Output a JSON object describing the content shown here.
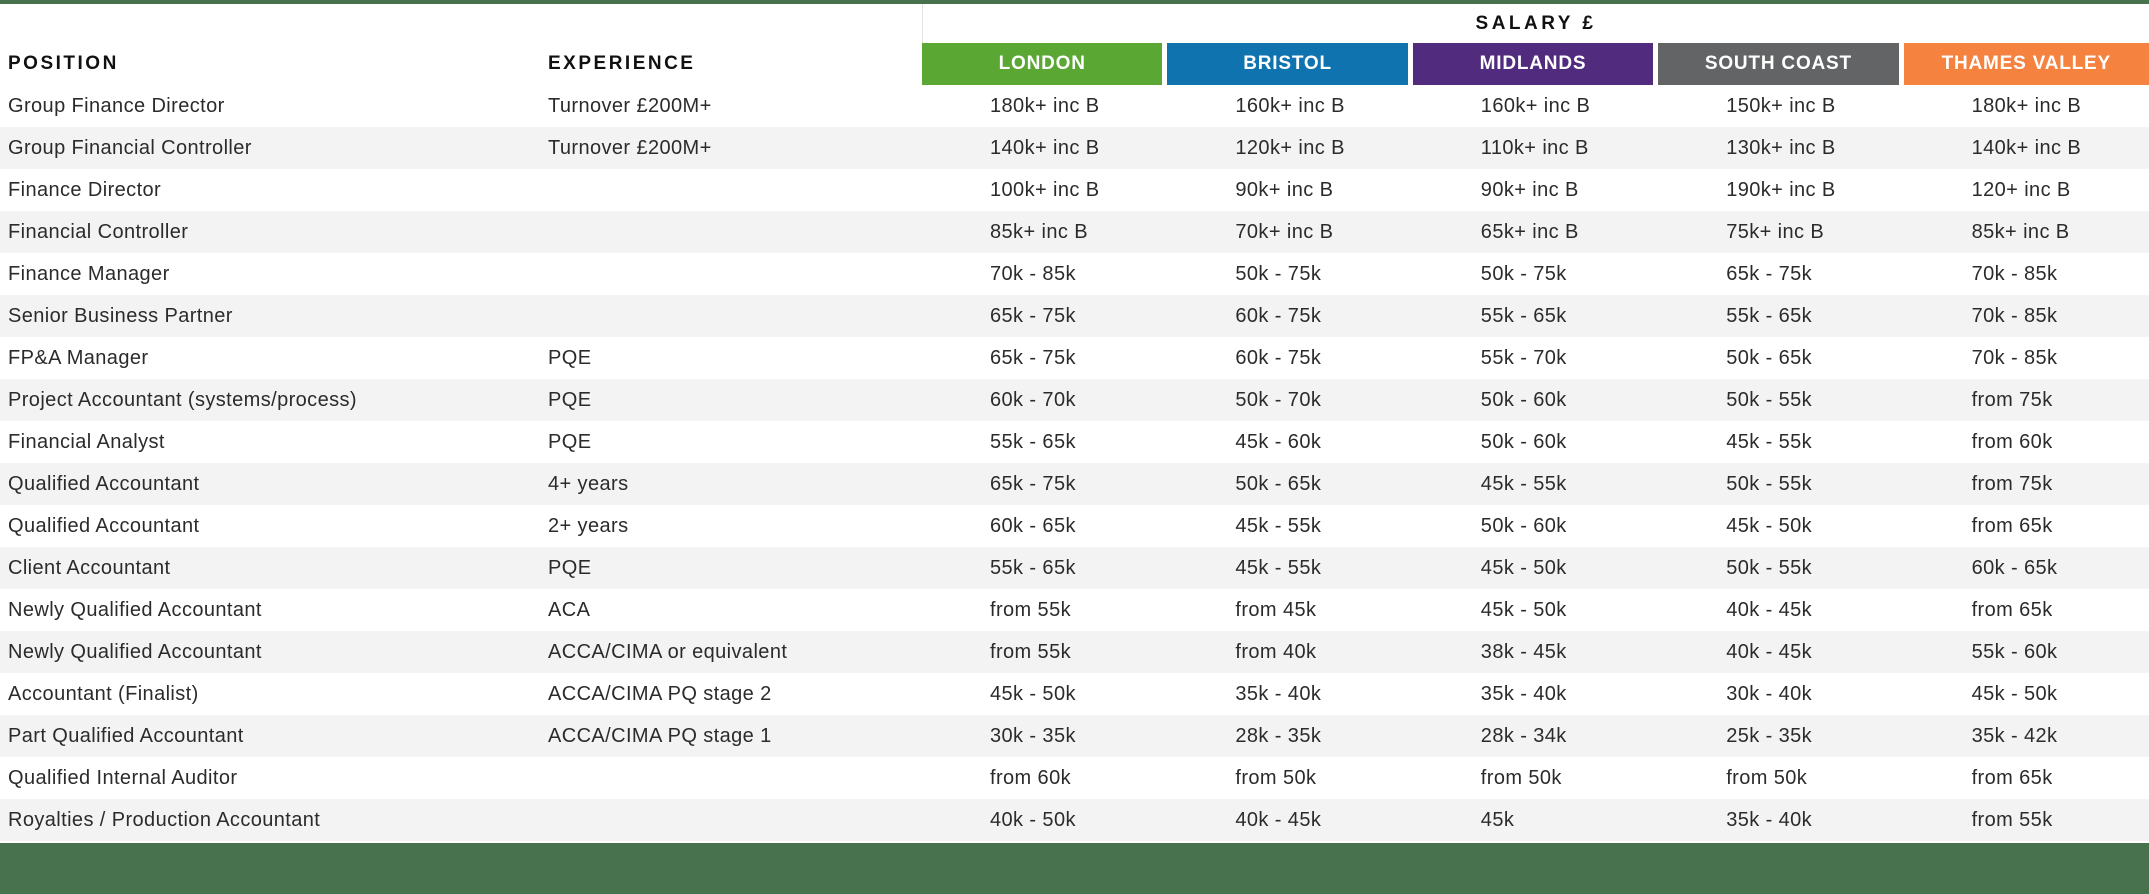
{
  "header": {
    "salary_label": "SALARY £",
    "position_label": "POSITION",
    "experience_label": "EXPERIENCE",
    "regions": [
      {
        "label": "LONDON",
        "color": "#5aa733"
      },
      {
        "label": "BRISTOL",
        "color": "#0e73ae"
      },
      {
        "label": "MIDLANDS",
        "color": "#512c7e"
      },
      {
        "label": "SOUTH COAST",
        "color": "#636466"
      },
      {
        "label": "THAMES VALLEY",
        "color": "#f5823f"
      }
    ]
  },
  "colors": {
    "accent_bar": "#48724e",
    "row_alt": "#f3f3f3",
    "text": "#2b2b2b"
  },
  "rows": [
    {
      "position": "Group Finance Director",
      "experience": "Turnover £200M+",
      "salaries": [
        "180k+ inc B",
        "160k+ inc B",
        "160k+ inc B",
        "150k+ inc B",
        "180k+ inc B"
      ]
    },
    {
      "position": "Group Financial Controller",
      "experience": "Turnover £200M+",
      "salaries": [
        "140k+ inc B",
        "120k+ inc B",
        "110k+ inc B",
        "130k+ inc B",
        "140k+ inc B"
      ]
    },
    {
      "position": "Finance Director",
      "experience": "",
      "salaries": [
        "100k+ inc B",
        "90k+ inc B",
        "90k+ inc B",
        "190k+ inc B",
        "120+ inc B"
      ]
    },
    {
      "position": "Financial Controller",
      "experience": "",
      "salaries": [
        "85k+ inc B",
        "70k+ inc B",
        "65k+ inc B",
        "75k+ inc B",
        "85k+ inc B"
      ]
    },
    {
      "position": "Finance Manager",
      "experience": "",
      "salaries": [
        "70k - 85k",
        "50k - 75k",
        "50k - 75k",
        "65k - 75k",
        "70k - 85k"
      ]
    },
    {
      "position": "Senior Business Partner",
      "experience": "",
      "salaries": [
        "65k - 75k",
        "60k - 75k",
        "55k - 65k",
        "55k - 65k",
        "70k - 85k"
      ]
    },
    {
      "position": "FP&A Manager",
      "experience": "PQE",
      "salaries": [
        "65k - 75k",
        "60k - 75k",
        "55k - 70k",
        "50k - 65k",
        "70k - 85k"
      ]
    },
    {
      "position": "Project Accountant (systems/process)",
      "experience": "PQE",
      "salaries": [
        "60k - 70k",
        "50k - 70k",
        "50k - 60k",
        "50k - 55k",
        "from 75k"
      ]
    },
    {
      "position": "Financial Analyst",
      "experience": "PQE",
      "salaries": [
        "55k - 65k",
        "45k - 60k",
        "50k - 60k",
        "45k - 55k",
        "from 60k"
      ]
    },
    {
      "position": "Qualified Accountant",
      "experience": "4+ years",
      "salaries": [
        "65k - 75k",
        "50k - 65k",
        "45k - 55k",
        "50k - 55k",
        "from 75k"
      ]
    },
    {
      "position": "Qualified Accountant",
      "experience": "2+ years",
      "salaries": [
        "60k - 65k",
        "45k - 55k",
        "50k - 60k",
        "45k - 50k",
        "from 65k"
      ]
    },
    {
      "position": "Client Accountant",
      "experience": "PQE",
      "salaries": [
        "55k - 65k",
        "45k - 55k",
        "45k - 50k",
        "50k - 55k",
        "60k - 65k"
      ]
    },
    {
      "position": "Newly Qualified Accountant",
      "experience": "ACA",
      "salaries": [
        "from 55k",
        "from 45k",
        "45k - 50k",
        "40k - 45k",
        "from 65k"
      ]
    },
    {
      "position": "Newly Qualified Accountant",
      "experience": "ACCA/CIMA or equivalent",
      "salaries": [
        "from 55k",
        "from 40k",
        "38k - 45k",
        "40k - 45k",
        "55k - 60k"
      ]
    },
    {
      "position": "Accountant (Finalist)",
      "experience": "ACCA/CIMA PQ stage 2",
      "salaries": [
        "45k - 50k",
        "35k - 40k",
        "35k - 40k",
        "30k - 40k",
        "45k - 50k"
      ]
    },
    {
      "position": "Part Qualified Accountant",
      "experience": "ACCA/CIMA PQ stage 1",
      "salaries": [
        "30k - 35k",
        "28k - 35k",
        "28k - 34k",
        "25k - 35k",
        "35k - 42k"
      ]
    },
    {
      "position": "Qualified Internal Auditor",
      "experience": "",
      "salaries": [
        "from 60k",
        "from 50k",
        "from 50k",
        "from 50k",
        "from 65k"
      ]
    },
    {
      "position": "Royalties / Production Accountant",
      "experience": "",
      "salaries": [
        "40k - 50k",
        "40k - 45k",
        "45k",
        "35k - 40k",
        "from 55k"
      ]
    }
  ]
}
